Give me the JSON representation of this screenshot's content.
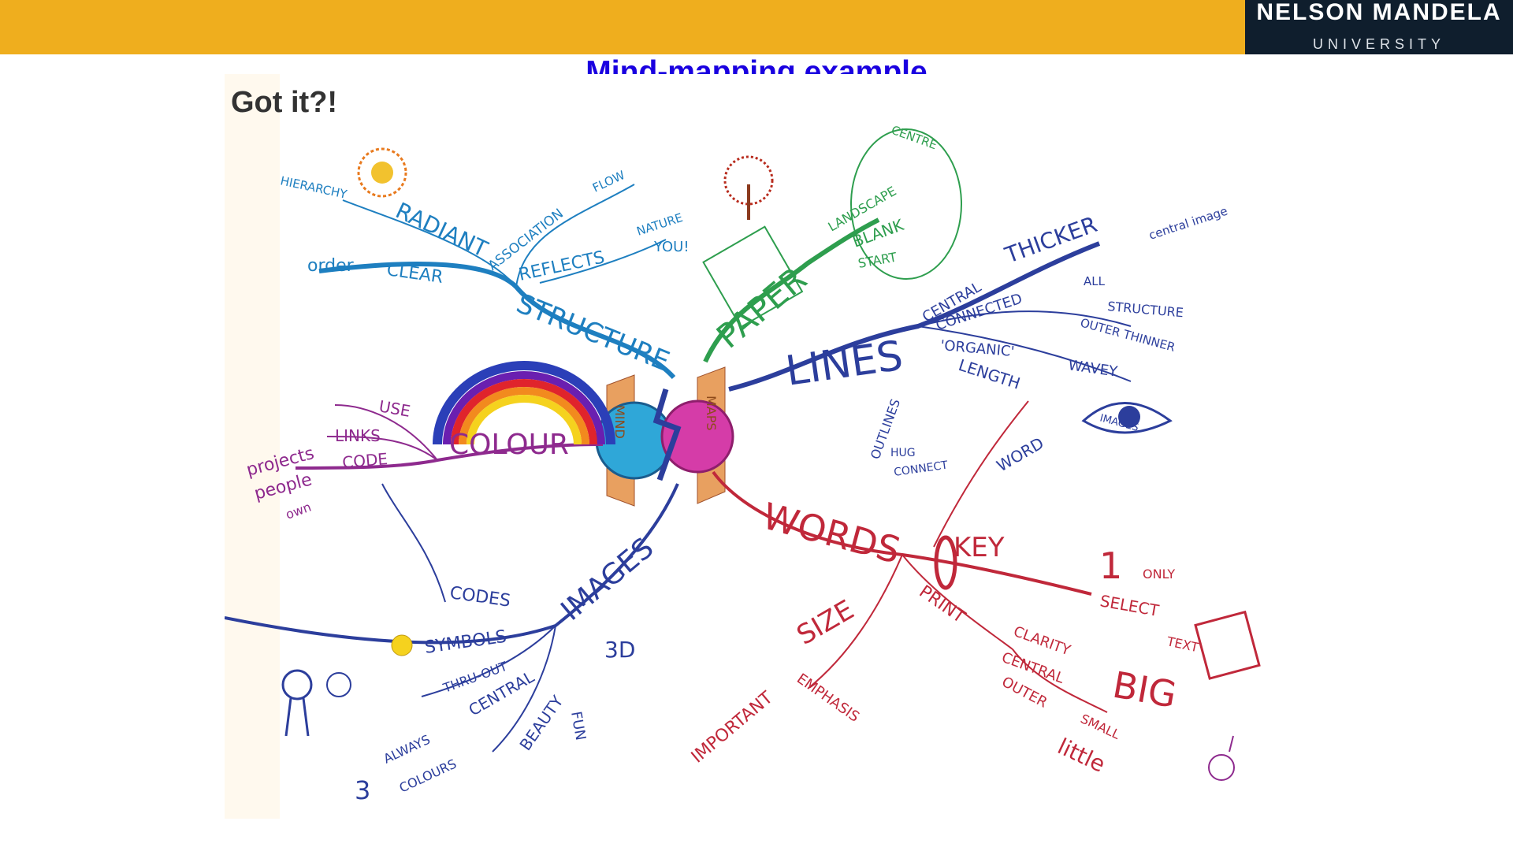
{
  "header": {
    "logo_main": "NELSON MANDELA",
    "logo_sub": "UNIVERSITY"
  },
  "slide": {
    "title": "Mind-mapping example"
  },
  "mindmap": {
    "caption": "Got it?!",
    "center_words": [
      "MIND",
      "MAPS"
    ],
    "branches": {
      "structure": {
        "label": "STRUCTURE",
        "subs": [
          "RADIANT",
          "HIERARCHY",
          "CLEAR",
          "order",
          "ASSOCIATION",
          "REFLECTS",
          "NATURE",
          "YOU!",
          "FLOW"
        ]
      },
      "paper": {
        "label": "PAPER",
        "subs": [
          "LANDSCAPE",
          "BLANK",
          "START",
          "CENTRE"
        ]
      },
      "lines": {
        "label": "LINES",
        "subs": [
          "THICKER",
          "central image",
          "CENTRAL",
          "ALL",
          "CONNECTED",
          "STRUCTURE",
          "OUTER THINNER",
          "'ORGANIC'",
          "WAVEY",
          "LENGTH",
          "WORD",
          "IMAGES",
          "OUTLINES",
          "HUG",
          "CONNECT"
        ]
      },
      "colour": {
        "label": "COLOUR",
        "subs": [
          "USE",
          "LINKS",
          "CODE",
          "projects",
          "people",
          "own"
        ]
      },
      "images": {
        "label": "IMAGES",
        "subs": [
          "CODES",
          "SYMBOLS",
          "3D",
          "THRU-OUT",
          "CENTRAL",
          "ALWAYS",
          "3",
          "COLOURS",
          "BEAUTY",
          "FUN"
        ]
      },
      "words": {
        "label": "WORDS",
        "subs": [
          "KEY",
          "1",
          "ONLY",
          "SELECT",
          "TEXT",
          "PRINT",
          "CLARITY",
          "CENTRAL",
          "OUTER",
          "BIG",
          "SMALL",
          "little",
          "SIZE",
          "IMPORTANT",
          "EMPHASIS"
        ]
      }
    },
    "colors": {
      "structure": "#1E7FC0",
      "paper": "#2E9E4E",
      "lines": "#2C3E9C",
      "colour": "#8E2A8E",
      "images": "#2C3E9C",
      "words": "#C0283A"
    }
  }
}
